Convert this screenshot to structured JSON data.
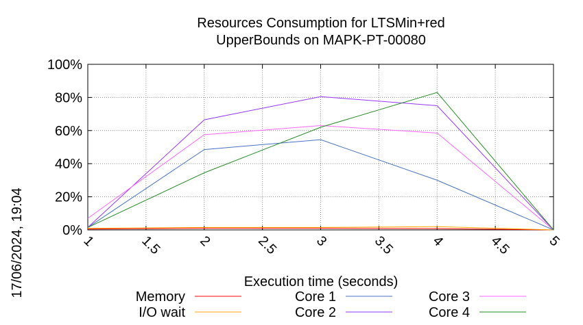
{
  "chart_data": {
    "type": "line",
    "title_lines": [
      "Resources Consumption for LTSMin+red",
      "UpperBounds on MAPK-PT-00080"
    ],
    "xlabel": "Execution time (seconds)",
    "ylabel": "",
    "side_label": "17/06/2024, 19:04",
    "xlim": [
      1,
      5
    ],
    "ylim": [
      0,
      100
    ],
    "x_ticks": [
      1,
      1.5,
      2,
      2.5,
      3,
      3.5,
      4,
      4.5,
      5
    ],
    "x_tick_labels": [
      "1",
      "1.5",
      "2",
      "2.5",
      "3",
      "3.5",
      "4",
      "4.5",
      "5"
    ],
    "y_ticks": [
      0,
      20,
      40,
      60,
      80,
      100
    ],
    "y_tick_labels": [
      "0%",
      "20%",
      "40%",
      "60%",
      "80%",
      "100%"
    ],
    "grid": true,
    "legend_position": "bottom",
    "x": [
      1,
      2,
      3,
      4,
      5
    ],
    "series": [
      {
        "name": "Memory",
        "color": "#ff0000",
        "values": [
          0.5,
          1.0,
          1.0,
          0.8,
          0
        ]
      },
      {
        "name": "I/O wait",
        "color": "#ffa500",
        "values": [
          1.0,
          1.5,
          1.5,
          2.0,
          0
        ]
      },
      {
        "name": "Core 1",
        "color": "#4472c4",
        "values": [
          1.5,
          48.5,
          54.5,
          30,
          0
        ]
      },
      {
        "name": "Core 2",
        "color": "#9933ff",
        "values": [
          1.5,
          66.5,
          80.5,
          75,
          0
        ]
      },
      {
        "name": "Core 3",
        "color": "#ff66ff",
        "values": [
          7,
          57.5,
          63,
          58.5,
          0
        ]
      },
      {
        "name": "Core 4",
        "color": "#228b22",
        "values": [
          1.5,
          34.5,
          62,
          83,
          0
        ]
      }
    ]
  }
}
